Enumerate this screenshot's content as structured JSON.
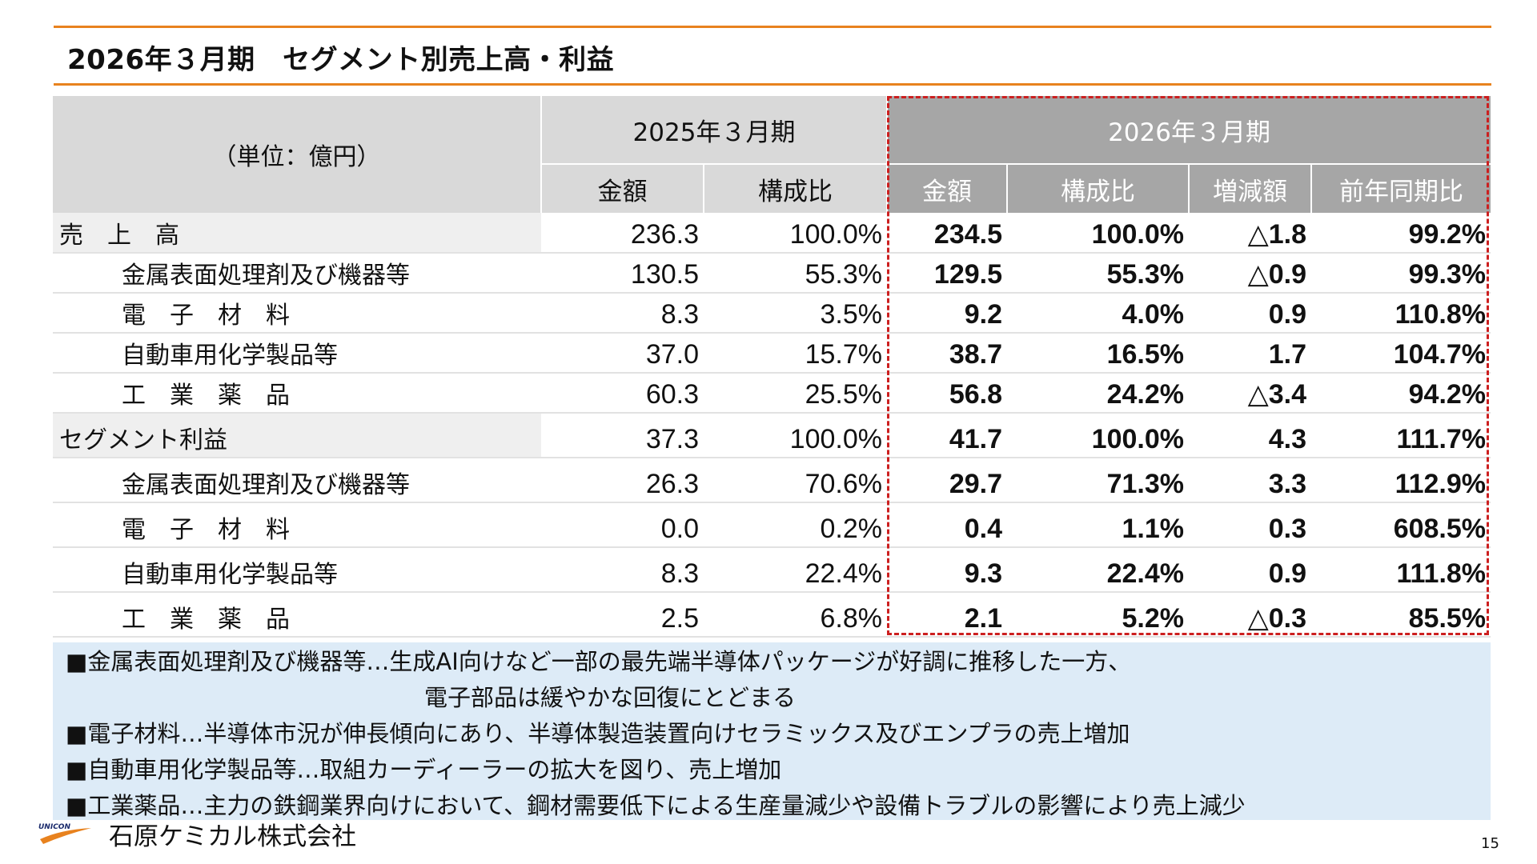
{
  "slide": {
    "title": "2026年３月期　セグメント別売上高・利益",
    "unit_label": "（単位：億円）",
    "period_prev": "2025年３月期",
    "period_curr": "2026年３月期",
    "col_amount": "金額",
    "col_ratio": "構成比",
    "col_change": "増減額",
    "col_yoy": "前年同期比"
  },
  "rows": [
    {
      "label": "売　上　高",
      "level": "top",
      "prev_amount": "236.3",
      "prev_ratio": "100.0%",
      "curr_amount": "234.5",
      "curr_ratio": "100.0%",
      "change": "△1.8",
      "yoy": "99.2%"
    },
    {
      "label": "金属表面処理剤及び機器等",
      "level": "sub",
      "prev_amount": "130.5",
      "prev_ratio": "55.3%",
      "curr_amount": "129.5",
      "curr_ratio": "55.3%",
      "change": "△0.9",
      "yoy": "99.3%"
    },
    {
      "label": "電　子　材　料",
      "level": "sub",
      "prev_amount": "8.3",
      "prev_ratio": "3.5%",
      "curr_amount": "9.2",
      "curr_ratio": "4.0%",
      "change": "0.9",
      "yoy": "110.8%"
    },
    {
      "label": "自動車用化学製品等",
      "level": "sub",
      "prev_amount": "37.0",
      "prev_ratio": "15.7%",
      "curr_amount": "38.7",
      "curr_ratio": "16.5%",
      "change": "1.7",
      "yoy": "104.7%"
    },
    {
      "label": "工　業　薬　品",
      "level": "sub",
      "prev_amount": "60.3",
      "prev_ratio": "25.5%",
      "curr_amount": "56.8",
      "curr_ratio": "24.2%",
      "change": "△3.4",
      "yoy": "94.2%"
    },
    {
      "label": "セグメント利益",
      "level": "top",
      "prev_amount": "37.3",
      "prev_ratio": "100.0%",
      "curr_amount": "41.7",
      "curr_ratio": "100.0%",
      "change": "4.3",
      "yoy": "111.7%"
    },
    {
      "label": "金属表面処理剤及び機器等",
      "level": "sub",
      "prev_amount": "26.3",
      "prev_ratio": "70.6%",
      "curr_amount": "29.7",
      "curr_ratio": "71.3%",
      "change": "3.3",
      "yoy": "112.9%"
    },
    {
      "label": "電　子　材　料",
      "level": "sub",
      "prev_amount": "0.0",
      "prev_ratio": "0.2%",
      "curr_amount": "0.4",
      "curr_ratio": "1.1%",
      "change": "0.3",
      "yoy": "608.5%"
    },
    {
      "label": "自動車用化学製品等",
      "level": "sub",
      "prev_amount": "8.3",
      "prev_ratio": "22.4%",
      "curr_amount": "9.3",
      "curr_ratio": "22.4%",
      "change": "0.9",
      "yoy": "111.8%"
    },
    {
      "label": "工　業　薬　品",
      "level": "sub",
      "prev_amount": "2.5",
      "prev_ratio": "6.8%",
      "curr_amount": "2.1",
      "curr_ratio": "5.2%",
      "change": "△0.3",
      "yoy": "85.5%"
    }
  ],
  "notes": [
    "■金属表面処理剤及び機器等…生成AI向けなど一部の最先端半導体パッケージが好調に推移した一方、",
    "電子部品は緩やかな回復にとどまる",
    "■電子材料…半導体市況が伸長傾向にあり、半導体製造装置向けセラミックス及びエンプラの売上増加",
    "■自動車用化学製品等…取組カーディーラーの拡大を図り、売上増加",
    "■工業薬品…主力の鉄鋼業界向けにおいて、鋼材需要低下による生産量減少や設備トラブルの影響により売上減少"
  ],
  "footer": {
    "logo_text": "UNICON",
    "company": "石原ケミカル株式会社",
    "page_number": "15"
  },
  "colors": {
    "accent_orange": "#e8821e",
    "highlight_border": "#cc1f1f",
    "header_gray": "#d9d9d9",
    "header_dark": "#a6a6a6",
    "notes_bg": "#ddebf7"
  }
}
